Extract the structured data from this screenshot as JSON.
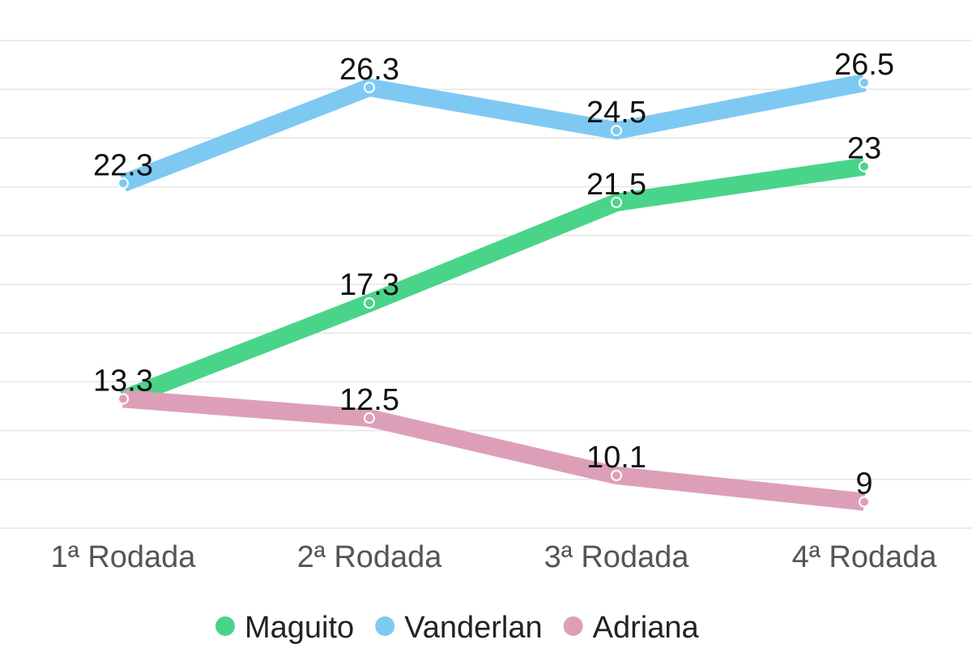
{
  "chart_data": {
    "type": "line",
    "categories": [
      "1ª Rodada",
      "2ª Rodada",
      "3ª Rodada",
      "4ª Rodada"
    ],
    "series": [
      {
        "name": "Maguito",
        "color": "#4ad48a",
        "values": [
          13.3,
          17.3,
          21.5,
          23
        ],
        "labels": [
          "",
          "17.3",
          "21.5",
          "23"
        ]
      },
      {
        "name": "Vanderlan",
        "color": "#7ec9f2",
        "values": [
          22.3,
          26.3,
          24.5,
          26.5
        ],
        "labels": [
          "22.3",
          "26.3",
          "24.5",
          "26.5"
        ]
      },
      {
        "name": "Adriana",
        "color": "#dd9fb8",
        "values": [
          13.3,
          12.5,
          10.1,
          9
        ],
        "labels": [
          "13.3",
          "12.5",
          "10.1",
          "9"
        ]
      }
    ],
    "ylim": [
      7.8,
      28.6
    ],
    "grid": true,
    "legend_position": "bottom"
  }
}
